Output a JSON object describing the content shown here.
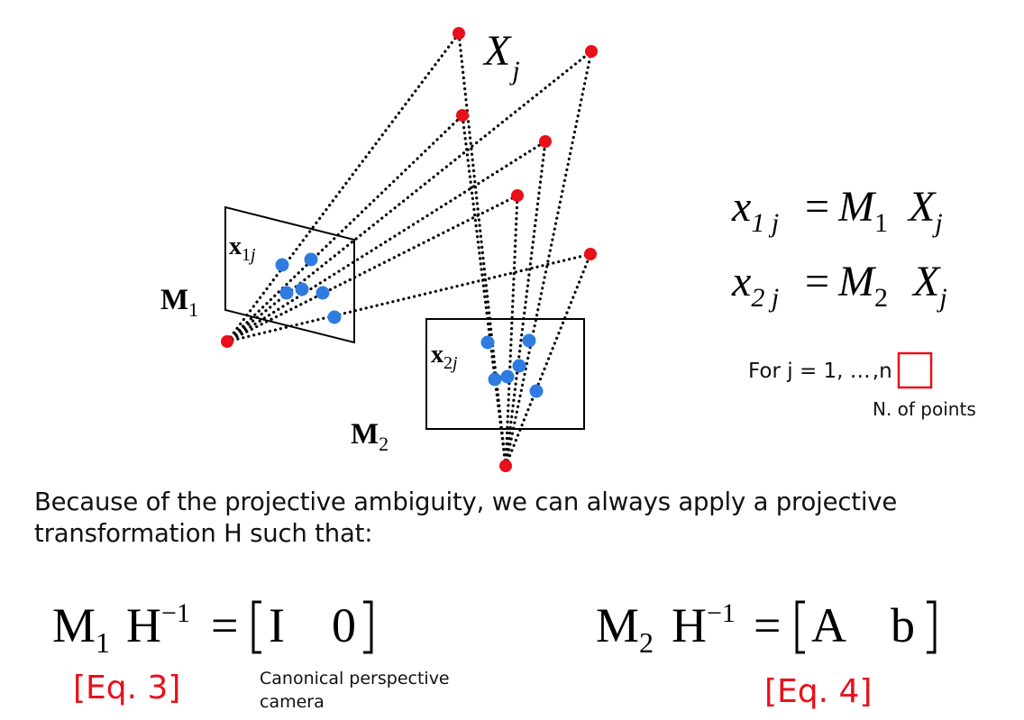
{
  "diagram": {
    "label_Xj_main": "X",
    "label_Xj_sub": "j",
    "label_M1_main": "M",
    "label_M1_sub": "1",
    "label_M2_main": "M",
    "label_M2_sub": "2",
    "label_x1j_main": "x",
    "label_x1j_sub1": "1",
    "label_x1j_sub2": "j",
    "label_x2j_main": "x",
    "label_x2j_sub1": "2",
    "label_x2j_sub2": "j",
    "colors": {
      "point3d": "#e8101a",
      "image_point": "#2f7be0",
      "highlight": "#e8101a"
    }
  },
  "equations": {
    "eq1": {
      "lhs": "x",
      "lhs_sub": "1 j",
      "eq": "=",
      "m": "M",
      "m_sub": "1",
      "x": "X",
      "x_sub": "j"
    },
    "eq2": {
      "lhs": "x",
      "lhs_sub": "2 j",
      "eq": "=",
      "m": "M",
      "m_sub": "2",
      "x": "X",
      "x_sub": "j"
    },
    "for_prefix": "For  j = 1, …",
    "for_n": ",n",
    "n_points": "N. of points"
  },
  "text": {
    "line1": "Because of the projective ambiguity, we can always apply a projective",
    "line2": "transformation H such that:"
  },
  "bottom": {
    "eq3": {
      "m": "M",
      "m_sub": "1",
      "h": "H",
      "h_sup": "−1",
      "eq": "=",
      "mat_a": "I",
      "mat_b": "0",
      "tag": "[Eq. 3]"
    },
    "eq4": {
      "m": "M",
      "m_sub": "2",
      "h": "H",
      "h_sup": "−1",
      "eq": "=",
      "mat_a": "A",
      "mat_b": "b",
      "tag": "[Eq. 4]"
    },
    "canonical_line1": "Canonical perspective",
    "canonical_line2": "camera"
  }
}
